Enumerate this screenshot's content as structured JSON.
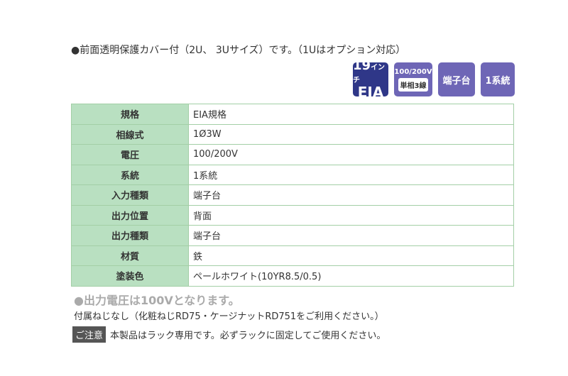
{
  "intro": "●前面透明保護カバー付（2U、 3Uサイズ）です。（1Uはオプション対応）",
  "badges": {
    "eia_num": "19",
    "eia_unit": "インチ",
    "eia": "EIA",
    "voltage": "100/200V",
    "phase": "単相3線",
    "terminal": "端子台",
    "system": "1系統"
  },
  "colors": {
    "header_bg": "#b9e0c1",
    "border": "#a3cfa6",
    "badge": "#6e66b6",
    "badge_eia": "#2f3788"
  },
  "specs": [
    {
      "label": "規格",
      "value": "EIA規格"
    },
    {
      "label": "相線式",
      "value": "1Ø3W"
    },
    {
      "label": "電圧",
      "value": "100/200V"
    },
    {
      "label": "系統",
      "value": "1系統"
    },
    {
      "label": "入力種類",
      "value": "端子台"
    },
    {
      "label": "出力位置",
      "value": "背面"
    },
    {
      "label": "出力種類",
      "value": "端子台"
    },
    {
      "label": "材質",
      "value": "鉄"
    },
    {
      "label": "塗装色",
      "value": "ペールホワイト(10YR8.5/0.5)"
    }
  ],
  "notes": {
    "output": "●出力電圧は100Vとなります。",
    "screws": "付属ねじなし（化粧ねじRD75・ケージナットRD751をご利用ください。）",
    "caution_tag": "ご注意",
    "caution": "本製品はラック専用です。必ずラックに固定してご使用ください。"
  }
}
